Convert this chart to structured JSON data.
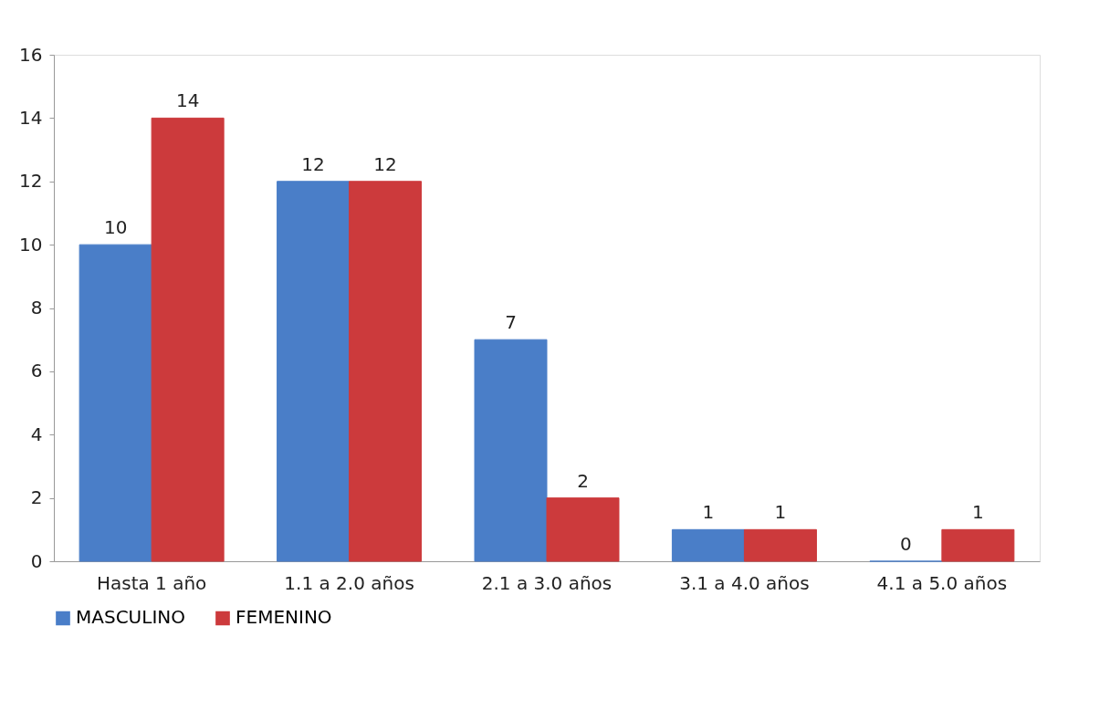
{
  "chart_data": {
    "type": "bar",
    "categories": [
      "Hasta 1 año",
      "1.1 a 2.0 años",
      "2.1 a 3.0 años",
      "3.1 a 4.0 años",
      "4.1 a 5.0 años"
    ],
    "series": [
      {
        "name": "MASCULINO",
        "color": "#4a7ec8",
        "values": [
          10,
          12,
          7,
          1,
          0
        ]
      },
      {
        "name": "FEMENINO",
        "color": "#cc3a3c",
        "values": [
          14,
          12,
          2,
          1,
          1
        ]
      }
    ],
    "ylim": [
      0,
      16
    ],
    "yticks": [
      0,
      2,
      4,
      6,
      8,
      10,
      12,
      14,
      16
    ],
    "data_labels": true,
    "legend": "bottom",
    "grid": false
  }
}
